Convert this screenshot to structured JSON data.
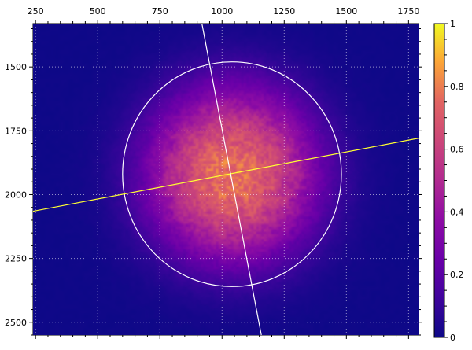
{
  "chart_data": {
    "type": "heatmap",
    "title": "",
    "xlabel": "",
    "ylabel": "",
    "x_axis_position": "top",
    "y_axis_direction": "inverted",
    "xlim": [
      240,
      1790
    ],
    "ylim": [
      1330,
      2550
    ],
    "x_ticks": [
      250,
      500,
      750,
      1000,
      1250,
      1500,
      1750
    ],
    "y_ticks": [
      1500,
      1750,
      2000,
      2250,
      2500
    ],
    "grid": true,
    "colormap": "plasma",
    "colorbar": {
      "range": [
        0,
        1
      ],
      "ticks": [
        0,
        0.2,
        0.4,
        0.6,
        0.8,
        1
      ],
      "tick_labels": [
        "0",
        "0,2",
        "0,4",
        "0,6",
        "0,8",
        "1"
      ]
    },
    "spot": {
      "center": [
        1040,
        1920
      ],
      "peak": 1.0,
      "core_radius": 330
    },
    "overlays": {
      "circle": {
        "center": [
          1040,
          1920
        ],
        "radius": 440,
        "color": "#ffffff"
      },
      "line_major": {
        "from": [
          240,
          2065
        ],
        "to": [
          1790,
          1779
        ],
        "color": "#ffff33"
      },
      "line_minor": {
        "from": [
          919,
          1330
        ],
        "to": [
          1158,
          2550
        ],
        "color": "#ffffff"
      }
    }
  },
  "colors": {
    "background_low": "#0d0887",
    "grid": "#ffffff"
  }
}
